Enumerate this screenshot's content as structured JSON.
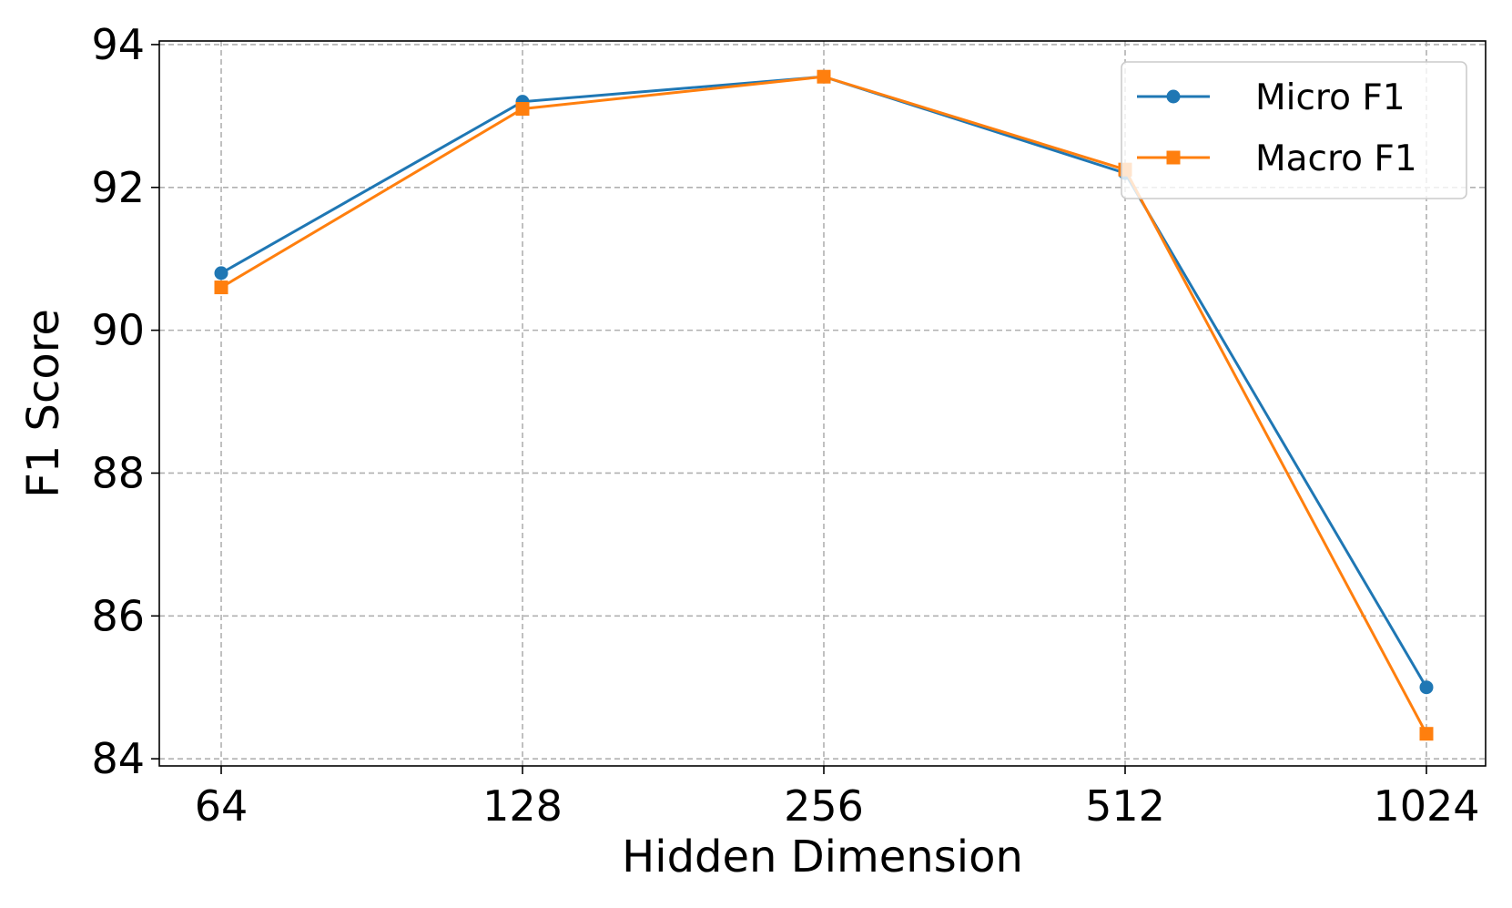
{
  "chart_data": {
    "type": "line",
    "title": "",
    "xlabel": "Hidden Dimension",
    "ylabel": "F1 Score",
    "categories": [
      "64",
      "128",
      "256",
      "512",
      "1024"
    ],
    "ylim": [
      83.9,
      94.05
    ],
    "yticks": [
      84,
      86,
      88,
      90,
      92,
      94
    ],
    "grid": true,
    "grid_style": "dashed",
    "legend_position": "top-right",
    "series": [
      {
        "name": "Micro F1",
        "values": [
          90.8,
          93.2,
          93.55,
          92.2,
          85.0
        ],
        "color": "#1f77b4",
        "marker": "circle"
      },
      {
        "name": "Macro F1",
        "values": [
          90.6,
          93.1,
          93.55,
          92.25,
          84.35
        ],
        "color": "#ff7f0e",
        "marker": "square"
      }
    ]
  }
}
